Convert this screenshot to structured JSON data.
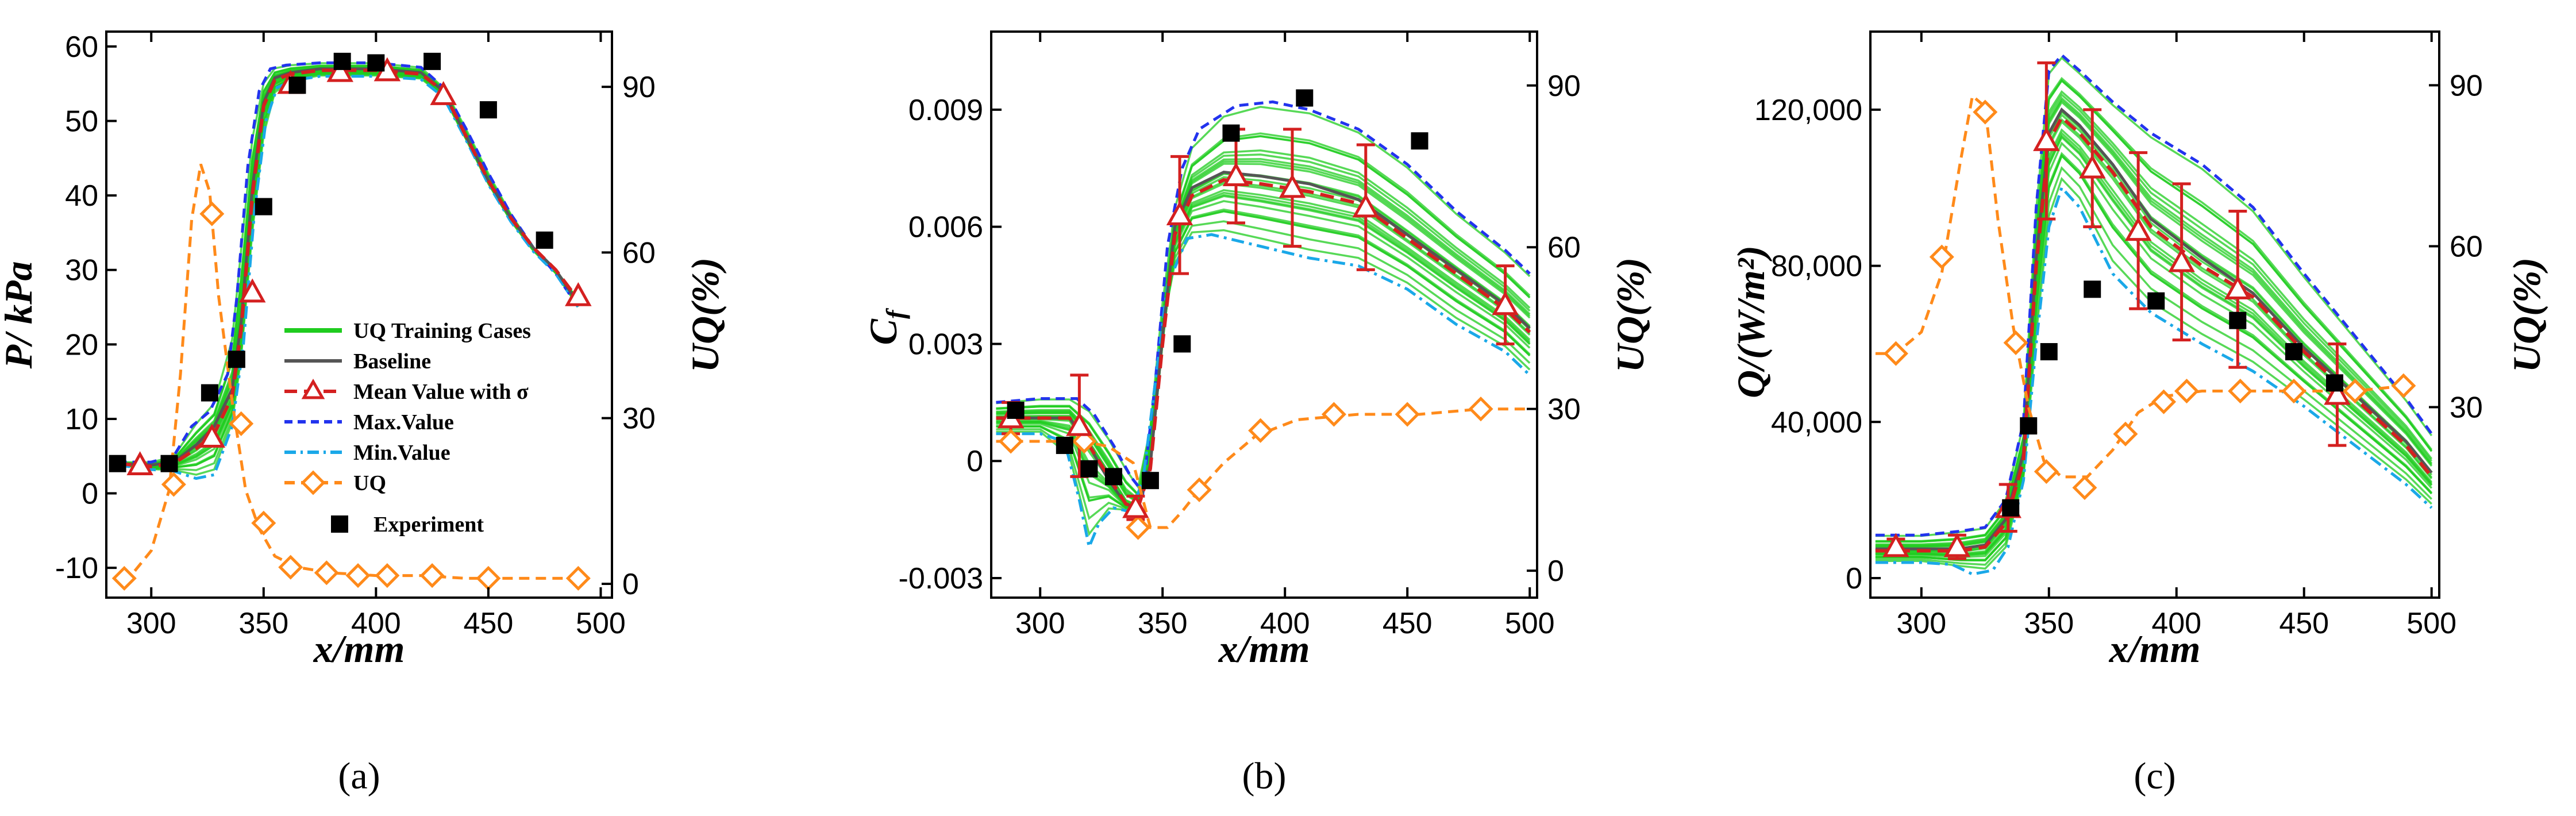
{
  "colors": {
    "training": "#1fcc1f",
    "baseline": "#555555",
    "mean": "#d42020",
    "max": "#2233ee",
    "min": "#1aa8e8",
    "uq": "#ff8a1a",
    "experiment": "#000000"
  },
  "legend": {
    "training": "UQ Training Cases",
    "baseline": "Baseline",
    "mean": "Mean Value with σ",
    "max": "Max.Value",
    "min": "Min.Value",
    "uq": "UQ",
    "experiment": "Experiment"
  },
  "captions": {
    "a": "(a)",
    "b": "(b)",
    "c": "(c)"
  },
  "chart_data": [
    {
      "id": "a",
      "type": "line",
      "xlabel": "x/mm",
      "ylabel": "P/ kPa",
      "y2label": "UQ(%)",
      "xlim": [
        280,
        505
      ],
      "ylim": [
        -14,
        62
      ],
      "y2lim": [
        -2.5,
        100
      ],
      "xticks": [
        300,
        350,
        400,
        450,
        500
      ],
      "xtick_labels": [
        "300",
        "350",
        "400",
        "450",
        "500"
      ],
      "yticks": [
        -10,
        0,
        10,
        20,
        30,
        40,
        50,
        60
      ],
      "ytick_labels": [
        "-10",
        "0",
        "10",
        "20",
        "30",
        "40",
        "50",
        "60"
      ],
      "y2ticks": [
        0,
        30,
        60,
        90
      ],
      "y2tick_labels": [
        "0",
        "30",
        "60",
        "90"
      ],
      "mean": {
        "x": [
          285,
          300,
          310,
          320,
          328,
          336,
          340,
          345,
          350,
          355,
          362,
          375,
          385,
          400,
          420,
          430,
          440,
          450,
          460,
          470,
          480,
          490
        ],
        "y": [
          4,
          3.6,
          4,
          6,
          8,
          13,
          22,
          40,
          52,
          55.5,
          56.3,
          56.8,
          56.8,
          56.8,
          56.3,
          54,
          48,
          42,
          37,
          33,
          30,
          26
        ]
      },
      "baseline": {
        "x": [
          285,
          300,
          310,
          320,
          328,
          336,
          340,
          345,
          350,
          355,
          362,
          375,
          385,
          400,
          420,
          430,
          440,
          450,
          460,
          470,
          480,
          490
        ],
        "y": [
          4,
          3.8,
          4.2,
          6.5,
          9,
          14,
          23,
          41,
          52.5,
          55.8,
          56.5,
          57,
          57,
          57,
          56.5,
          54,
          48,
          42,
          37,
          33,
          30,
          25.5
        ]
      },
      "max": {
        "x": [
          285,
          300,
          310,
          318,
          326,
          334,
          338,
          343,
          348,
          353,
          360,
          375,
          385,
          400,
          420,
          430,
          440,
          450,
          460,
          470,
          480,
          490
        ],
        "y": [
          4.2,
          4.2,
          5,
          9,
          11,
          16,
          26,
          44,
          54,
          57,
          57.5,
          57.8,
          57.8,
          57.8,
          57.2,
          54.5,
          49,
          43,
          37.5,
          33,
          29.5,
          25
        ]
      },
      "min": {
        "x": [
          285,
          300,
          310,
          320,
          328,
          336,
          341,
          346,
          351,
          356,
          364,
          375,
          385,
          400,
          420,
          430,
          440,
          450,
          460,
          470,
          480,
          490
        ],
        "y": [
          3.8,
          3.2,
          3,
          2,
          2.5,
          9,
          20,
          38,
          50,
          54.5,
          55.5,
          56,
          56,
          56,
          55.6,
          53.2,
          47.5,
          41.5,
          36.5,
          32.5,
          29.5,
          25
        ]
      },
      "mean_markers": {
        "x": [
          295,
          327,
          345,
          362,
          384,
          405,
          430,
          490
        ],
        "y": [
          3.8,
          7.5,
          27,
          55,
          56.6,
          56.7,
          53.5,
          26.5
        ]
      },
      "uq_curve": {
        "x": [
          288,
          300,
          308,
          313,
          318,
          322,
          326,
          330,
          336,
          342,
          348,
          355,
          365,
          380,
          400,
          420,
          440,
          460,
          480,
          495
        ],
        "y": [
          0,
          6,
          17,
          38,
          66,
          76,
          71,
          52,
          33,
          17,
          10,
          5,
          3,
          2,
          1.5,
          1.5,
          1,
          1,
          1,
          1
        ]
      },
      "uq_markers": {
        "x": [
          288,
          310,
          327,
          340,
          350,
          362,
          378,
          392,
          405,
          425,
          450,
          490
        ],
        "y": [
          1,
          18,
          67,
          29,
          11,
          3,
          2,
          1.5,
          1.5,
          1.5,
          1,
          1
        ]
      },
      "experiment": {
        "x": [
          285,
          308,
          326,
          338,
          350,
          365,
          385,
          400,
          425,
          450,
          475
        ],
        "y": [
          4,
          4,
          13.5,
          18,
          38.5,
          54.8,
          58,
          57.8,
          58,
          51.5,
          34
        ]
      }
    },
    {
      "id": "b",
      "type": "line",
      "xlabel": "x/mm",
      "ylabel": "C_f",
      "y2label": "UQ(%)",
      "xlim": [
        280,
        503
      ],
      "ylim": [
        -0.0035,
        0.011
      ],
      "y2lim": [
        -5,
        100
      ],
      "xticks": [
        300,
        350,
        400,
        450,
        500
      ],
      "xtick_labels": [
        "300",
        "350",
        "400",
        "450",
        "500"
      ],
      "yticks": [
        -0.003,
        0,
        0.003,
        0.006,
        0.009
      ],
      "ytick_labels": [
        "-0.003",
        "0",
        "0.003",
        "0.006",
        "0.009"
      ],
      "y2ticks": [
        0,
        30,
        60,
        90
      ],
      "y2tick_labels": [
        "0",
        "30",
        "60",
        "90"
      ],
      "mean": {
        "x": [
          282,
          300,
          312,
          320,
          328,
          335,
          340,
          345,
          350,
          355,
          362,
          375,
          390,
          410,
          430,
          450,
          470,
          490,
          500
        ],
        "y": [
          0.0011,
          0.0011,
          0.0011,
          0.0004,
          -0.0004,
          -0.0011,
          -0.0012,
          -0.0002,
          0.003,
          0.0058,
          0.0068,
          0.0072,
          0.0071,
          0.0069,
          0.0066,
          0.0057,
          0.0048,
          0.0039,
          0.0033
        ]
      },
      "baseline": {
        "x": [
          282,
          300,
          312,
          320,
          328,
          335,
          340,
          345,
          350,
          355,
          362,
          375,
          390,
          410,
          430,
          450,
          470,
          490,
          500
        ],
        "y": [
          0.0011,
          0.0011,
          0.0011,
          0.0004,
          -0.0005,
          -0.0011,
          -0.0012,
          -0.0001,
          0.0032,
          0.006,
          0.007,
          0.0074,
          0.0073,
          0.0071,
          0.0067,
          0.0058,
          0.0049,
          0.004,
          0.0034
        ]
      },
      "max": {
        "x": [
          282,
          300,
          315,
          322,
          330,
          337,
          342,
          347,
          352,
          358,
          365,
          380,
          395,
          410,
          430,
          450,
          470,
          490,
          500
        ],
        "y": [
          0.0015,
          0.0016,
          0.0016,
          0.0012,
          0.0004,
          -0.0004,
          -0.0008,
          0.002,
          0.0055,
          0.0075,
          0.0085,
          0.0091,
          0.0092,
          0.009,
          0.0085,
          0.0076,
          0.0064,
          0.0054,
          0.0048
        ]
      },
      "min": {
        "x": [
          282,
          300,
          310,
          316,
          320,
          324,
          330,
          337,
          342,
          347,
          352,
          360,
          370,
          390,
          410,
          430,
          450,
          470,
          490,
          500
        ],
        "y": [
          0.0007,
          0.0007,
          0.0005,
          -0.001,
          -0.0022,
          -0.0016,
          -0.0012,
          -0.0013,
          -0.0005,
          0.002,
          0.0045,
          0.0057,
          0.0058,
          0.0055,
          0.0052,
          0.005,
          0.0044,
          0.0035,
          0.0028,
          0.0022
        ]
      },
      "mean_markers": {
        "x": [
          288,
          316,
          339,
          357,
          380,
          403,
          433,
          490
        ],
        "y": [
          0.0011,
          0.0009,
          -0.0012,
          0.0063,
          0.0073,
          0.007,
          0.0065,
          0.004
        ]
      },
      "mean_error": [
        0.0004,
        0.0013,
        0.0003,
        0.0015,
        0.0012,
        0.0015,
        0.0016,
        0.001
      ],
      "uq_curve": {
        "x": [
          282,
          300,
          318,
          328,
          338,
          345,
          352,
          358,
          365,
          375,
          388,
          405,
          430,
          455,
          480,
          500
        ],
        "y": [
          24,
          24,
          24,
          23,
          20,
          8,
          8,
          11,
          15,
          20,
          25,
          28,
          29,
          29,
          30,
          30
        ]
      },
      "uq_markers": {
        "x": [
          288,
          318,
          340,
          365,
          390,
          420,
          450,
          480
        ],
        "y": [
          24,
          24,
          8,
          15,
          26,
          29,
          29,
          30
        ]
      },
      "experiment": {
        "x": [
          290,
          310,
          320,
          330,
          345,
          358,
          378,
          408,
          455
        ],
        "y": [
          0.0013,
          0.0004,
          -0.0002,
          -0.0004,
          -0.0005,
          0.003,
          0.0084,
          0.0093,
          0.0082
        ]
      }
    },
    {
      "id": "c",
      "type": "line",
      "xlabel": "x/mm",
      "ylabel": "Q/(W/m²)",
      "y2label": "UQ(%)",
      "xlim": [
        280,
        503
      ],
      "ylim": [
        -5000,
        140000
      ],
      "y2lim": [
        -5.5,
        100
      ],
      "xticks": [
        300,
        350,
        400,
        450,
        500
      ],
      "xtick_labels": [
        "300",
        "350",
        "400",
        "450",
        "500"
      ],
      "yticks": [
        0,
        40000,
        80000,
        120000
      ],
      "ytick_labels": [
        "0",
        "40,000",
        "80,000",
        "120,000"
      ],
      "y2ticks": [
        30,
        60,
        90
      ],
      "y2tick_labels": [
        "30",
        "60",
        "90"
      ],
      "mean": {
        "x": [
          282,
          300,
          315,
          325,
          333,
          340,
          345,
          350,
          355,
          362,
          375,
          390,
          410,
          430,
          450,
          470,
          490,
          500
        ],
        "y": [
          7000,
          7000,
          7000,
          8000,
          14000,
          30000,
          80000,
          112000,
          118000,
          114000,
          104000,
          90000,
          80000,
          72000,
          58000,
          46000,
          34000,
          26000
        ]
      },
      "baseline": {
        "x": [
          282,
          300,
          315,
          325,
          333,
          340,
          345,
          350,
          355,
          362,
          375,
          390,
          410,
          430,
          450,
          470,
          490,
          500
        ],
        "y": [
          7500,
          7500,
          7500,
          8500,
          15000,
          32000,
          82000,
          114000,
          120000,
          116000,
          106000,
          92000,
          82000,
          73000,
          59000,
          47000,
          35000,
          27000
        ]
      },
      "max": {
        "x": [
          282,
          300,
          315,
          325,
          333,
          340,
          345,
          350,
          355,
          362,
          375,
          390,
          410,
          430,
          450,
          470,
          490,
          500
        ],
        "y": [
          11000,
          11000,
          12000,
          13000,
          20000,
          40000,
          95000,
          130000,
          134000,
          130000,
          122000,
          114000,
          106000,
          95000,
          78000,
          62000,
          46000,
          37000
        ]
      },
      "min": {
        "x": [
          282,
          300,
          312,
          320,
          328,
          334,
          340,
          345,
          350,
          355,
          362,
          375,
          390,
          410,
          430,
          450,
          470,
          490,
          500
        ],
        "y": [
          4000,
          4000,
          3500,
          1000,
          2000,
          8000,
          25000,
          60000,
          90000,
          100000,
          95000,
          78000,
          68000,
          60000,
          53000,
          44000,
          34000,
          24000,
          18000
        ]
      },
      "mean_markers": {
        "x": [
          290,
          314,
          334,
          349,
          367,
          385,
          402,
          424,
          463
        ],
        "y": [
          8000,
          8000,
          18000,
          112000,
          105000,
          89000,
          81000,
          74000,
          47000
        ]
      },
      "mean_error": [
        2000,
        3000,
        6000,
        20000,
        15000,
        20000,
        20000,
        20000,
        13000
      ],
      "uq_curve": {
        "x": [
          282,
          290,
          300,
          308,
          315,
          320,
          325,
          330,
          336,
          342,
          348,
          355,
          365,
          375,
          385,
          395,
          410,
          430,
          450,
          470,
          490
        ],
        "y": [
          40,
          40,
          44,
          55,
          75,
          88,
          86,
          65,
          45,
          30,
          20,
          17,
          17,
          22,
          29,
          32,
          33,
          33,
          33,
          33,
          34
        ]
      },
      "uq_markers": {
        "x": [
          290,
          308,
          325,
          337,
          349,
          364,
          380,
          395,
          404,
          425,
          446,
          470,
          489
        ],
        "y": [
          40,
          58,
          85,
          42,
          18,
          15,
          25,
          31,
          33,
          33,
          33,
          33,
          34
        ]
      },
      "experiment": {
        "x": [
          335,
          342,
          350,
          367,
          392,
          424,
          446,
          462
        ],
        "y": [
          18000,
          39000,
          58000,
          74000,
          71000,
          66000,
          58000,
          50000
        ]
      }
    }
  ]
}
